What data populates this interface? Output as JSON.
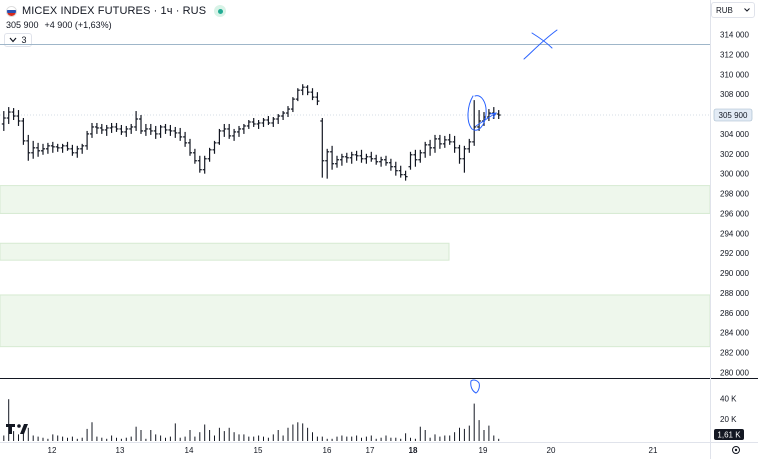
{
  "header": {
    "symbol_line": "MICEX INDEX FUTURES · 1ч · RUS",
    "price": "305 900",
    "change": "+4 900 (+1,63%)",
    "indicator_count": "3"
  },
  "currency_selector": {
    "value": "RUB"
  },
  "price_axis_labels": [
    "314 000",
    "312 000",
    "310 000",
    "308 000",
    "306 000",
    "304 000",
    "302 000",
    "300 000",
    "298 000",
    "296 000",
    "294 000",
    "292 000",
    "290 000",
    "288 000",
    "286 000",
    "284 000",
    "282 000",
    "280 000"
  ],
  "current_price_label": "305 900",
  "volume_axis_labels": [
    "40 K",
    "20 K"
  ],
  "current_volume_label": "1,61 K",
  "time_axis_labels": [
    "12",
    "13",
    "14",
    "15",
    "16",
    "17",
    "18",
    "19",
    "20",
    "21"
  ],
  "colors": {
    "bar": "#131722",
    "zone_fill": "#eef7ec",
    "zone_edge": "#d6ead2",
    "annotation": "#2962ff",
    "horizontal_line": "#9fb6c9"
  },
  "chart_data": {
    "type": "ohlc",
    "title": "MICEX INDEX FUTURES · 1ч · RUS",
    "interval": "1h",
    "ylim": [
      279000,
      316500
    ],
    "x_ticks": [
      "12",
      "13",
      "14",
      "15",
      "16",
      "17",
      "18",
      "19",
      "20",
      "21"
    ],
    "last_close": 305900,
    "horizontal_line_price": 313000,
    "zones": [
      {
        "from": 296000,
        "to": 298800
      },
      {
        "from": 291300,
        "to": 293000
      },
      {
        "from": 282600,
        "to": 287800
      }
    ],
    "bars": [
      [
        305000,
        306300,
        304300,
        305600,
        5000
      ],
      [
        305600,
        306700,
        305000,
        306200,
        38000
      ],
      [
        306200,
        306600,
        305400,
        305800,
        9000
      ],
      [
        305800,
        306400,
        304800,
        305300,
        6000
      ],
      [
        305300,
        305600,
        302900,
        303300,
        7000
      ],
      [
        303300,
        303900,
        301300,
        302100,
        12000
      ],
      [
        302100,
        303300,
        301500,
        302600,
        5000
      ],
      [
        302600,
        303100,
        301700,
        302300,
        4000
      ],
      [
        302300,
        303000,
        301900,
        302500,
        3000
      ],
      [
        302500,
        303100,
        302000,
        302800,
        2000
      ],
      [
        302800,
        303200,
        302100,
        302700,
        6000
      ],
      [
        302700,
        303000,
        302200,
        302600,
        5000
      ],
      [
        302600,
        303000,
        302100,
        302800,
        4000
      ],
      [
        302800,
        303200,
        302300,
        302500,
        3000
      ],
      [
        302500,
        302900,
        301800,
        302100,
        4000
      ],
      [
        302100,
        302800,
        301600,
        302500,
        2000
      ],
      [
        302500,
        303000,
        302000,
        302800,
        3000
      ],
      [
        302800,
        304300,
        302400,
        304000,
        11000
      ],
      [
        304000,
        305100,
        303600,
        304700,
        17000
      ],
      [
        304700,
        305100,
        304000,
        304600,
        4000
      ],
      [
        304600,
        305000,
        304000,
        304400,
        3000
      ],
      [
        304400,
        304900,
        303800,
        304600,
        2000
      ],
      [
        304600,
        305100,
        304100,
        304700,
        5000
      ],
      [
        304700,
        305100,
        304200,
        304500,
        3000
      ],
      [
        304500,
        304900,
        303900,
        304200,
        2000
      ],
      [
        304200,
        304800,
        303700,
        304500,
        3000
      ],
      [
        304500,
        305000,
        304000,
        304700,
        4000
      ],
      [
        304700,
        306300,
        304300,
        305500,
        13000
      ],
      [
        305500,
        305900,
        304000,
        304300,
        10000
      ],
      [
        304300,
        305000,
        303800,
        304500,
        2000
      ],
      [
        304500,
        305000,
        303900,
        304300,
        10000
      ],
      [
        304300,
        304800,
        303500,
        304000,
        6000
      ],
      [
        304000,
        304900,
        303600,
        304700,
        5000
      ],
      [
        304700,
        305000,
        304000,
        304400,
        3000
      ],
      [
        304400,
        304900,
        303800,
        304300,
        4000
      ],
      [
        304300,
        304700,
        303600,
        304100,
        16000
      ],
      [
        304100,
        304600,
        303300,
        303700,
        3000
      ],
      [
        303700,
        304200,
        302700,
        303100,
        4000
      ],
      [
        303100,
        303500,
        301800,
        302100,
        10000
      ],
      [
        302100,
        302500,
        301000,
        301300,
        4000
      ],
      [
        301300,
        301800,
        300100,
        300400,
        8000
      ],
      [
        300400,
        301800,
        300000,
        301500,
        15000
      ],
      [
        301500,
        302600,
        301200,
        302400,
        10000
      ],
      [
        302400,
        303300,
        302000,
        303100,
        5000
      ],
      [
        303100,
        304500,
        302900,
        304300,
        12000
      ],
      [
        304300,
        305000,
        303700,
        304500,
        9000
      ],
      [
        304500,
        305000,
        303500,
        303800,
        12000
      ],
      [
        303800,
        304500,
        303300,
        304200,
        8000
      ],
      [
        304200,
        304800,
        303700,
        304500,
        6000
      ],
      [
        304500,
        305000,
        304000,
        304800,
        6000
      ],
      [
        304800,
        305400,
        304500,
        305200,
        4000
      ],
      [
        305200,
        305600,
        304700,
        305000,
        4000
      ],
      [
        305000,
        305400,
        304500,
        305100,
        5000
      ],
      [
        305100,
        305600,
        304700,
        305400,
        4000
      ],
      [
        305400,
        305800,
        304900,
        305100,
        3000
      ],
      [
        305100,
        305700,
        304700,
        305500,
        6000
      ],
      [
        305500,
        306000,
        305000,
        305800,
        10000
      ],
      [
        305800,
        306300,
        305400,
        306100,
        5000
      ],
      [
        306100,
        306800,
        305700,
        306500,
        12000
      ],
      [
        306500,
        307700,
        306200,
        307500,
        15000
      ],
      [
        307500,
        308600,
        307300,
        308400,
        17000
      ],
      [
        308400,
        309000,
        307900,
        308700,
        16000
      ],
      [
        308700,
        308900,
        307900,
        308200,
        12000
      ],
      [
        308200,
        308600,
        307400,
        307700,
        8000
      ],
      [
        307700,
        308200,
        306900,
        307300,
        4000
      ],
      [
        305300,
        305600,
        299600,
        301300,
        4000
      ],
      [
        301300,
        302500,
        299500,
        302200,
        2000
      ],
      [
        302200,
        302800,
        300400,
        301000,
        2000
      ],
      [
        301000,
        301800,
        300600,
        301400,
        4000
      ],
      [
        301400,
        302000,
        300800,
        301700,
        5000
      ],
      [
        301700,
        302100,
        301100,
        301600,
        4000
      ],
      [
        301600,
        302200,
        301000,
        301900,
        4000
      ],
      [
        301900,
        302300,
        301300,
        301800,
        5000
      ],
      [
        301800,
        302400,
        301100,
        301500,
        3000
      ],
      [
        301500,
        302000,
        301000,
        301700,
        4000
      ],
      [
        301700,
        302200,
        301200,
        301500,
        5000
      ],
      [
        301500,
        301900,
        300900,
        301200,
        2000
      ],
      [
        301200,
        301700,
        300700,
        301400,
        3000
      ],
      [
        301400,
        301800,
        300800,
        301100,
        5000
      ],
      [
        301100,
        301500,
        300300,
        300700,
        3000
      ],
      [
        300700,
        301200,
        299800,
        300300,
        3000
      ],
      [
        300300,
        300800,
        299600,
        299900,
        2000
      ],
      [
        299900,
        300300,
        299300,
        299700,
        7000
      ],
      [
        300700,
        302200,
        300400,
        301900,
        3000
      ],
      [
        301900,
        302400,
        300700,
        301400,
        2000
      ],
      [
        301400,
        302400,
        301100,
        302100,
        13000
      ],
      [
        302100,
        303200,
        301600,
        302900,
        10000
      ],
      [
        302900,
        303400,
        301800,
        302600,
        3000
      ],
      [
        302600,
        303900,
        302100,
        303500,
        6000
      ],
      [
        303500,
        303900,
        302500,
        303000,
        4000
      ],
      [
        303000,
        303800,
        302600,
        303400,
        5000
      ],
      [
        303400,
        304000,
        302900,
        303200,
        5000
      ],
      [
        303200,
        303800,
        302100,
        302600,
        8000
      ],
      [
        302600,
        302900,
        301000,
        301500,
        12000
      ],
      [
        301500,
        302800,
        300100,
        302500,
        11000
      ],
      [
        302500,
        303500,
        302100,
        303200,
        14000
      ],
      [
        303200,
        307400,
        302800,
        304700,
        34000
      ],
      [
        304700,
        306400,
        304300,
        305300,
        19000
      ],
      [
        305300,
        306200,
        304800,
        305700,
        10000
      ],
      [
        305700,
        306500,
        305300,
        306100,
        14000
      ],
      [
        306100,
        306700,
        305500,
        306000,
        5000
      ],
      [
        306000,
        306400,
        305500,
        305900,
        2000
      ]
    ]
  }
}
